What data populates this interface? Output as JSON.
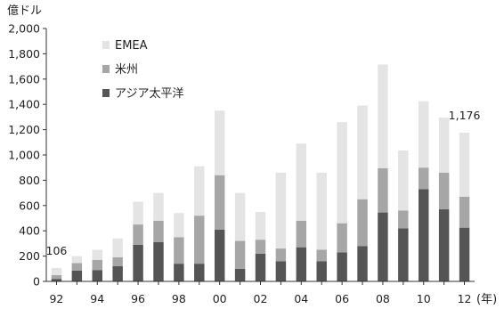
{
  "chart_data": {
    "type": "bar",
    "stacked": true,
    "title": "",
    "ylabel": "億ドル",
    "xlabel": "(年)",
    "ylim": [
      0,
      2000
    ],
    "yticks": [
      "0",
      "200",
      "400",
      "600",
      "800",
      "1,000",
      "1,200",
      "1,400",
      "1,600",
      "1,800",
      "2,000"
    ],
    "ytick_values": [
      0,
      200,
      400,
      600,
      800,
      1000,
      1200,
      1400,
      1600,
      1800,
      2000
    ],
    "categories": [
      "92",
      "93",
      "94",
      "95",
      "96",
      "97",
      "98",
      "99",
      "00",
      "01",
      "02",
      "03",
      "04",
      "05",
      "06",
      "07",
      "08",
      "09",
      "10",
      "11",
      "12"
    ],
    "xtick_labels": [
      "92",
      "",
      "94",
      "",
      "96",
      "",
      "98",
      "",
      "00",
      "",
      "02",
      "",
      "04",
      "",
      "06",
      "",
      "08",
      "",
      "10",
      "",
      "12"
    ],
    "legend_position": "top-left",
    "grid": false,
    "series": [
      {
        "name": "アジア太平洋",
        "color": "#555555",
        "values": [
          20,
          85,
          90,
          120,
          290,
          310,
          140,
          140,
          410,
          100,
          220,
          160,
          270,
          160,
          230,
          280,
          545,
          420,
          730,
          570,
          425
        ]
      },
      {
        "name": "米州",
        "color": "#a6a6a6",
        "values": [
          30,
          60,
          80,
          70,
          160,
          170,
          210,
          380,
          430,
          220,
          110,
          100,
          210,
          90,
          230,
          370,
          350,
          140,
          170,
          290,
          245
        ]
      },
      {
        "name": "EMEA",
        "color": "#e4e4e4",
        "values": [
          56,
          55,
          80,
          150,
          180,
          220,
          190,
          390,
          510,
          380,
          220,
          600,
          610,
          610,
          800,
          740,
          820,
          475,
          525,
          435,
          506
        ]
      }
    ],
    "annotations": [
      {
        "text": "106",
        "category": "92"
      },
      {
        "text": "1,176",
        "category": "12"
      }
    ]
  }
}
